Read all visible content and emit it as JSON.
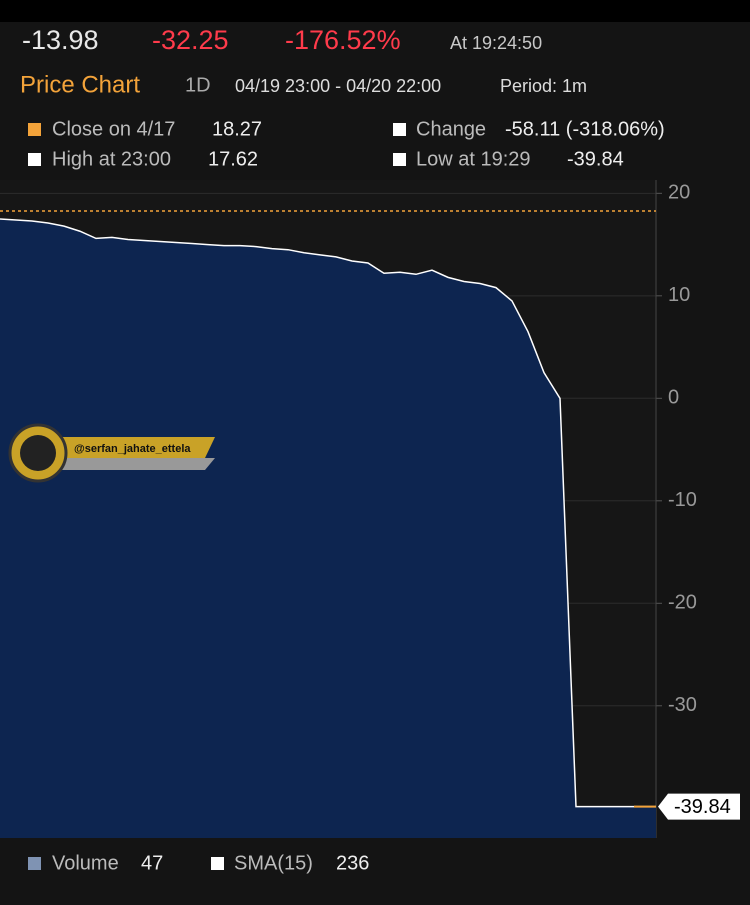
{
  "header": {
    "last": "-13.98",
    "change": "-32.25",
    "change_pct": "-176.52%",
    "time": "At 19:24:50",
    "title": "Price Chart",
    "range": "1D",
    "dates": "04/19 23:00 - 04/20 22:00",
    "period": "Period: 1m"
  },
  "legend": {
    "items": [
      {
        "label": "Close on 4/17",
        "value": "18.27"
      },
      {
        "label": "Change",
        "value": "-58.11 (-318.06%)"
      },
      {
        "label": "High at 23:00",
        "value": "17.62"
      },
      {
        "label": "Low at 19:29",
        "value": "-39.84"
      }
    ]
  },
  "watermark": "@serfan_jahate_ettela",
  "chart_data": {
    "type": "area",
    "color": "#0d2550",
    "line_color": "#ffffff",
    "reference_line": 18.27,
    "values": [
      17.5,
      17.4,
      17.3,
      17.1,
      16.8,
      16.3,
      15.6,
      15.7,
      15.5,
      15.4,
      15.3,
      15.2,
      15.1,
      15.0,
      14.9,
      14.9,
      14.8,
      14.6,
      14.5,
      14.2,
      14.0,
      13.8,
      13.4,
      13.2,
      12.2,
      12.3,
      12.1,
      12.5,
      11.8,
      11.4,
      11.2,
      10.8,
      9.5,
      6.5,
      2.5,
      0.0,
      -39.84,
      -39.84,
      -39.84,
      -39.84,
      -39.84,
      -39.84
    ],
    "ylim": [
      -42.9,
      21.3
    ],
    "yticks": [
      20,
      10,
      0,
      -10,
      -20,
      -30
    ],
    "grid": true
  },
  "footer": {
    "items": [
      {
        "label": "Volume",
        "value": "47"
      },
      {
        "label": "SMA(15)",
        "value": "236"
      }
    ]
  }
}
